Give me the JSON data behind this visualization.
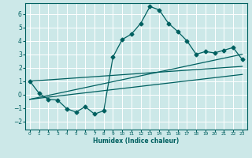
{
  "xlabel": "Humidex (Indice chaleur)",
  "bg_color": "#cce8e8",
  "grid_color": "#ffffff",
  "line_color": "#006060",
  "xlim": [
    -0.5,
    23.5
  ],
  "ylim": [
    -2.6,
    6.8
  ],
  "xticks": [
    0,
    1,
    2,
    3,
    4,
    5,
    6,
    7,
    8,
    9,
    10,
    11,
    12,
    13,
    14,
    15,
    16,
    17,
    18,
    19,
    20,
    21,
    22,
    23
  ],
  "yticks": [
    -2,
    -1,
    0,
    1,
    2,
    3,
    4,
    5,
    6
  ],
  "main_x": [
    0,
    1,
    2,
    3,
    4,
    5,
    6,
    7,
    8,
    9,
    10,
    11,
    12,
    13,
    14,
    15,
    16,
    17,
    18,
    19,
    20,
    21,
    22,
    23
  ],
  "main_y": [
    1.0,
    0.1,
    -0.35,
    -0.4,
    -1.05,
    -1.3,
    -0.9,
    -1.45,
    -1.2,
    2.8,
    4.1,
    4.5,
    5.3,
    6.55,
    6.3,
    5.3,
    4.7,
    4.0,
    3.0,
    3.2,
    3.1,
    3.3,
    3.5,
    2.6
  ],
  "trend1_x": [
    0,
    23
  ],
  "trend1_y": [
    1.0,
    2.1
  ],
  "trend2_x": [
    0,
    23
  ],
  "trend2_y": [
    -0.35,
    3.0
  ],
  "trend3_x": [
    0,
    23
  ],
  "trend3_y": [
    -0.35,
    1.5
  ],
  "marker": "D",
  "marker_size": 2.5,
  "line_width": 0.9
}
